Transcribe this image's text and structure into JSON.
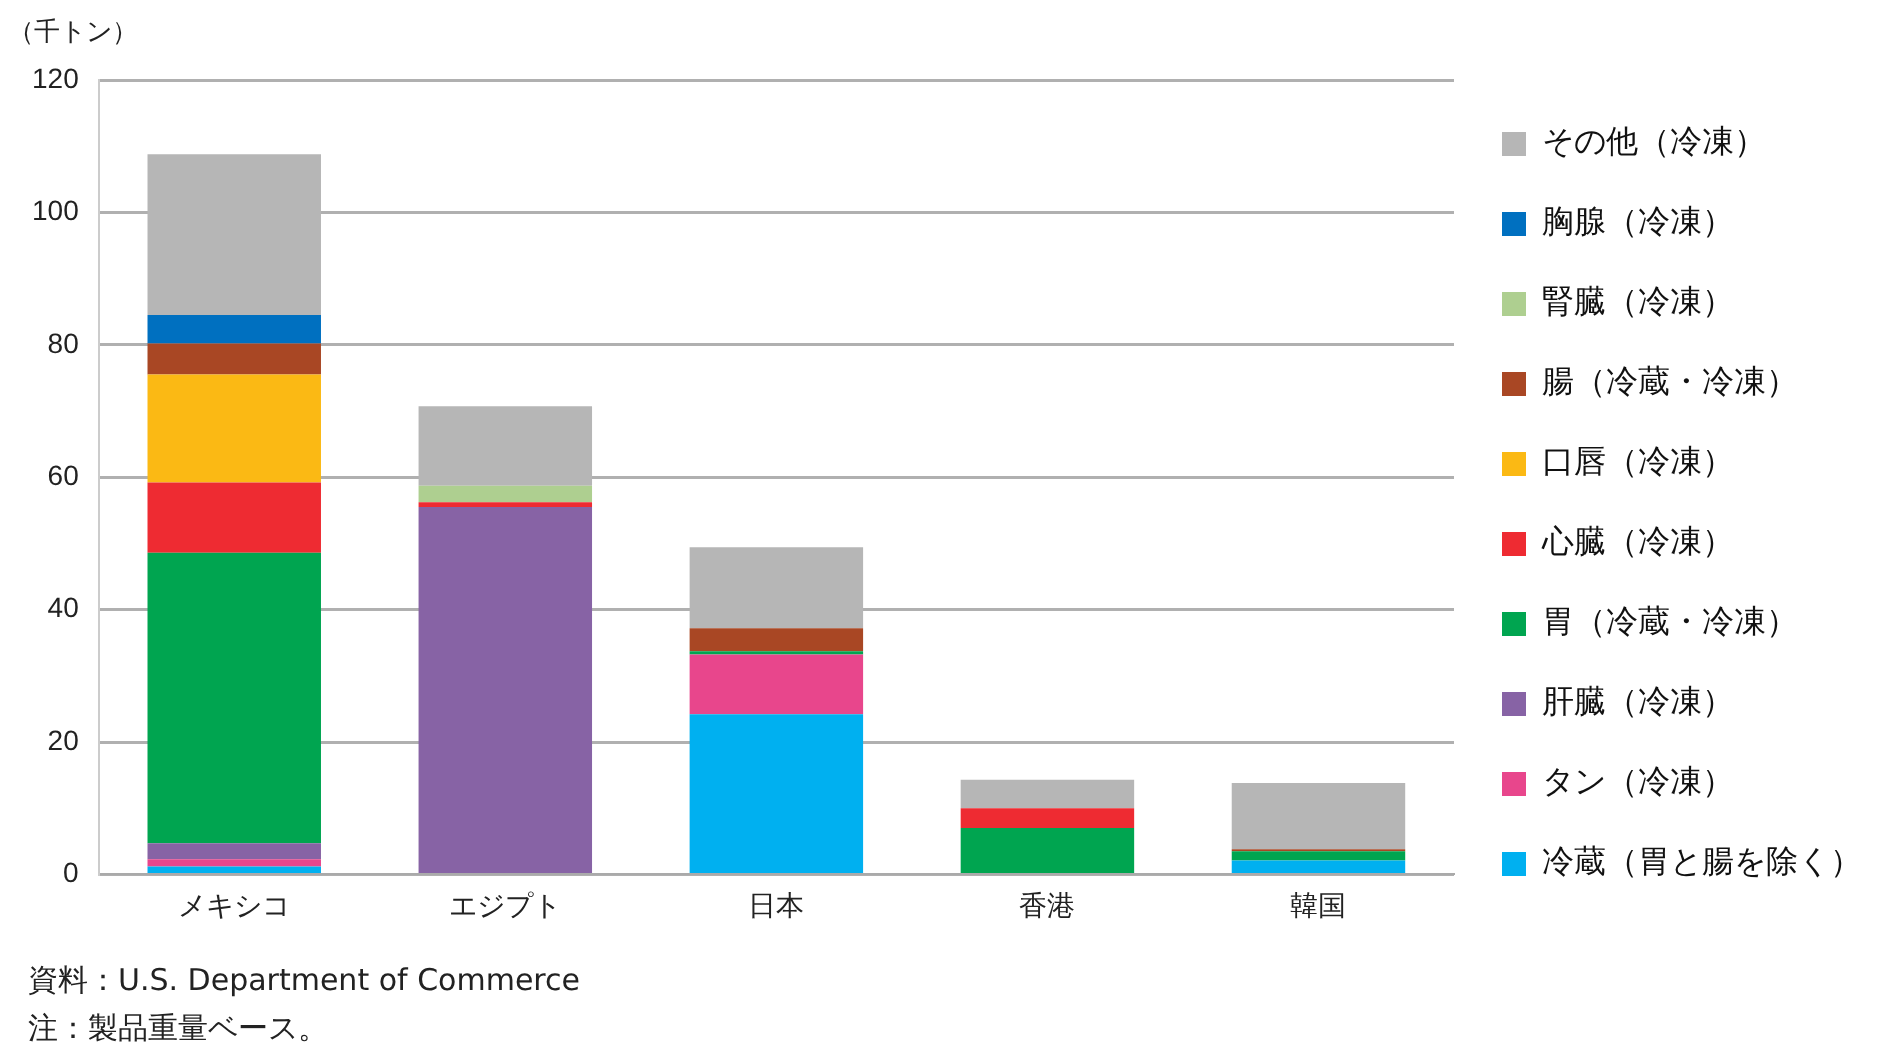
{
  "chart_data": {
    "type": "bar",
    "stacked": true,
    "ylabel": "（千トン）",
    "categories": [
      "メキシコ",
      "エジプト",
      "日本",
      "香港",
      "韓国"
    ],
    "series": [
      {
        "name": "冷蔵（胃と腸を除く）",
        "color": "#00b0f0",
        "values": [
          1.2,
          null,
          24.2,
          null,
          2.1
        ]
      },
      {
        "name": "タン（冷凍）",
        "color": "#e8468c",
        "values": [
          1.1,
          null,
          9.0,
          null,
          null
        ]
      },
      {
        "name": "肝臓（冷凍）",
        "color": "#8763a5",
        "values": [
          2.4,
          55.5,
          null,
          null,
          null
        ]
      },
      {
        "name": "胃（冷蔵・冷凍）",
        "color": "#00a550",
        "values": [
          43.9,
          null,
          0.5,
          7.0,
          1.4
        ]
      },
      {
        "name": "心臓（冷凍）",
        "color": "#ee2b32",
        "values": [
          10.6,
          0.7,
          null,
          3.0,
          null
        ]
      },
      {
        "name": "口唇（冷凍）",
        "color": "#fbb914",
        "values": [
          16.3,
          null,
          null,
          null,
          null
        ]
      },
      {
        "name": "腸（冷蔵・冷凍）",
        "color": "#a94724",
        "values": [
          4.7,
          null,
          3.5,
          null,
          0.3
        ]
      },
      {
        "name": "腎臓（冷凍）",
        "color": "#aecf90",
        "values": [
          null,
          2.5,
          null,
          null,
          null
        ]
      },
      {
        "name": "胸腺（冷凍）",
        "color": "#0070c0",
        "values": [
          4.3,
          null,
          null,
          null,
          null
        ]
      },
      {
        "name": "その他（冷凍）",
        "color": "#b6b6b6",
        "values": [
          24.3,
          12.0,
          12.2,
          4.3,
          10.0
        ]
      }
    ],
    "ylim": [
      0,
      120
    ],
    "yticks": [
      0,
      20,
      40,
      60,
      80,
      100,
      120
    ],
    "grid": "y",
    "legend": "right",
    "annotations": [
      "資料：U.S. Department of Commerce",
      "注：製品重量ベース。"
    ]
  }
}
